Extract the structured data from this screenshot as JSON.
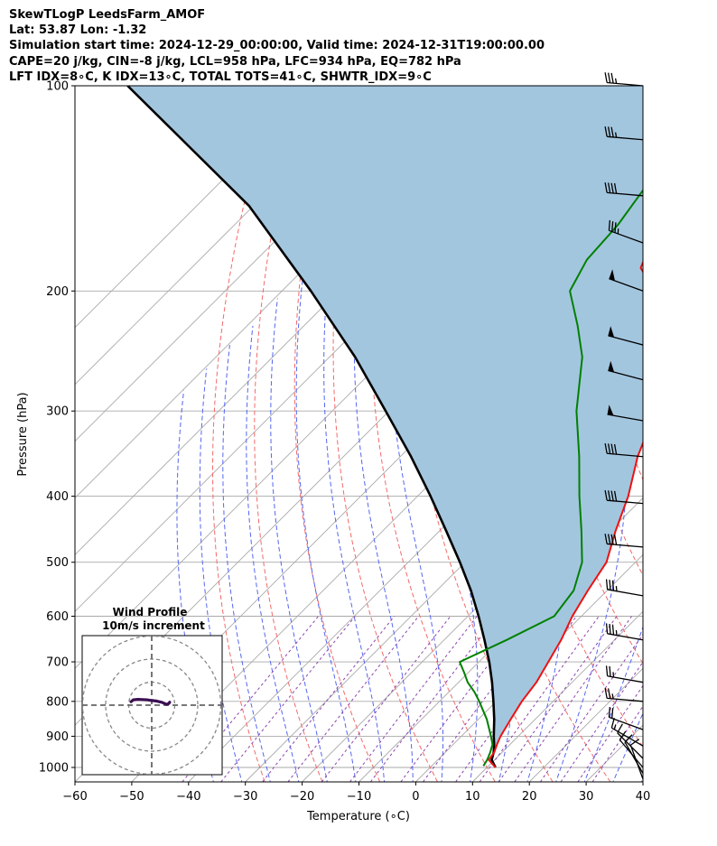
{
  "header": {
    "line1": "SkewTLogP LeedsFarm_AMOF",
    "line2": "Lat: 53.87   Lon: -1.32",
    "line3": "Simulation start time: 2024-12-29_00:00:00, Valid time: 2024-12-31T19:00:00.00",
    "line4": "CAPE=20 j/kg, CIN=-8 j/kg, LCL=958 hPa, LFC=934 hPa, EQ=782 hPa",
    "line5": "LFT IDX=8∘C, K IDX=13∘C, TOTAL TOTS=41∘C, SHWTR_IDX=9∘C"
  },
  "chart_data": {
    "type": "skewt",
    "xlabel": "Temperature (∘C)",
    "ylabel": "Pressure (hPa)",
    "xlim": [
      -60,
      40
    ],
    "ylim": [
      1050,
      100
    ],
    "x_ticks": [
      "−60",
      "−50",
      "−40",
      "−30",
      "−20",
      "−10",
      "0",
      "10",
      "20",
      "30",
      "40"
    ],
    "y_ticks": [
      "1000",
      "900",
      "800",
      "700",
      "600",
      "500",
      "400",
      "300",
      "200",
      "100"
    ],
    "grid": true,
    "colors": {
      "temperature": "#ee1111",
      "dewpoint": "#008000",
      "parcel": "#000000",
      "cape_fill": "#a3c6df",
      "dry_adiabats": "#f26a6a",
      "moist_adiabats": "#5566ee",
      "mixing_ratio": "#8e44ad",
      "isotherms": "#aaaaaa"
    },
    "temperature": {
      "p": [
        1000,
        975,
        950,
        925,
        900,
        850,
        800,
        750,
        700,
        650,
        600,
        550,
        500,
        450,
        400,
        350,
        300,
        250,
        225,
        200,
        185,
        170,
        155,
        140,
        130,
        120,
        110,
        100
      ],
      "t": [
        11.5,
        9.0,
        8.6,
        7.7,
        6.9,
        5.7,
        4.5,
        3.7,
        2.2,
        0.6,
        -1.6,
        -3.4,
        -5.1,
        -9.0,
        -12.9,
        -18.2,
        -23.1,
        -32.4,
        -37.5,
        -44.4,
        -50.9,
        -53.5,
        -56.3,
        -56.0,
        -56.7,
        -58.5,
        -60.2,
        -62.3
      ]
    },
    "dewpoint": {
      "p": [
        995,
        975,
        950,
        925,
        900,
        850,
        800,
        775,
        750,
        725,
        700,
        650,
        600,
        550,
        500,
        450,
        400,
        350,
        300,
        250,
        225,
        200,
        180,
        160,
        140,
        130,
        115,
        100
      ],
      "td": [
        9.1,
        8.7,
        7.9,
        6.9,
        5.2,
        1.5,
        -3.0,
        -5.5,
        -8.4,
        -10.8,
        -13.4,
        -9.0,
        -4.8,
        -5.9,
        -9.4,
        -15.0,
        -21.5,
        -28.5,
        -37.0,
        -45.5,
        -51.8,
        -59.3,
        -61.8,
        -62.5,
        -64.4,
        -67.3,
        -71.5,
        -76.1
      ]
    },
    "parcel": {
      "p": [
        1000,
        975,
        950,
        925,
        900,
        850,
        800,
        750,
        700,
        650,
        600,
        550,
        500,
        450,
        400,
        350,
        300,
        250,
        200,
        150,
        100
      ],
      "t": [
        11.5,
        9.5,
        8.5,
        7.2,
        5.7,
        2.8,
        -0.5,
        -4.1,
        -8.2,
        -12.9,
        -18.1,
        -24.0,
        -30.9,
        -38.8,
        -47.7,
        -58.1,
        -70.6,
        -85.5,
        -104.9,
        -130.8,
        -173.3
      ]
    },
    "wind_barbs": [
      {
        "p": 100,
        "speed_kt": 35,
        "dir": 275
      },
      {
        "p": 120,
        "speed_kt": 35,
        "dir": 275
      },
      {
        "p": 145,
        "speed_kt": 40,
        "dir": 275
      },
      {
        "p": 170,
        "speed_kt": 35,
        "dir": 290
      },
      {
        "p": 200,
        "speed_kt": 50,
        "dir": 290
      },
      {
        "p": 240,
        "speed_kt": 50,
        "dir": 285
      },
      {
        "p": 270,
        "speed_kt": 50,
        "dir": 285
      },
      {
        "p": 310,
        "speed_kt": 50,
        "dir": 280
      },
      {
        "p": 350,
        "speed_kt": 40,
        "dir": 275
      },
      {
        "p": 410,
        "speed_kt": 40,
        "dir": 275
      },
      {
        "p": 475,
        "speed_kt": 40,
        "dir": 275
      },
      {
        "p": 560,
        "speed_kt": 35,
        "dir": 280
      },
      {
        "p": 650,
        "speed_kt": 35,
        "dir": 280
      },
      {
        "p": 750,
        "speed_kt": 25,
        "dir": 280
      },
      {
        "p": 800,
        "speed_kt": 25,
        "dir": 275
      },
      {
        "p": 880,
        "speed_kt": 20,
        "dir": 290
      },
      {
        "p": 930,
        "speed_kt": 15,
        "dir": 300
      },
      {
        "p": 970,
        "speed_kt": 10,
        "dir": 315
      },
      {
        "p": 1000,
        "speed_kt": 10,
        "dir": 320
      },
      {
        "p": 1020,
        "speed_kt": 10,
        "dir": 330
      },
      {
        "p": 1040,
        "speed_kt": 10,
        "dir": 340
      }
    ],
    "wind_profile": {
      "title": "Wind Profile",
      "subtitle": "10m/s increment",
      "u_ms": [
        -9.0,
        -8.0,
        -6.0,
        -4.0,
        -2.0,
        0.0,
        2.0,
        4.5,
        6.5,
        7.5,
        7.8
      ],
      "v_ms": [
        1.5,
        2.3,
        2.5,
        2.4,
        2.3,
        2.0,
        1.8,
        1.2,
        0.3,
        0.8,
        1.3
      ],
      "rings_ms": [
        10,
        20,
        30
      ],
      "color": "#3b0f52"
    }
  }
}
